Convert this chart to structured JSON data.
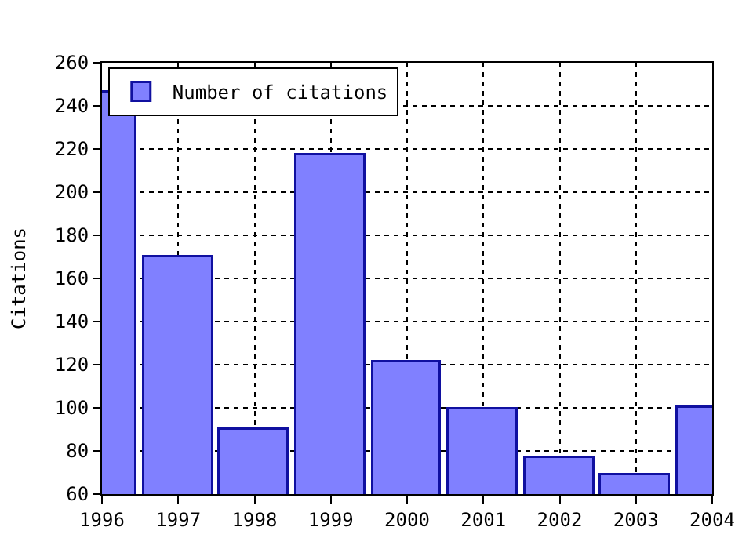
{
  "chart_data": {
    "type": "bar",
    "ylabel": "Citations",
    "x": [
      1996,
      1997,
      1998,
      1999,
      2000,
      2001,
      2002,
      2003,
      2004
    ],
    "series": [
      {
        "name": "Number of citations",
        "color": "#8080ff",
        "values": [
          246,
          170,
          90,
          217,
          121,
          99,
          77,
          69,
          100
        ]
      }
    ],
    "xlim": [
      1996,
      2004
    ],
    "xticks": [
      1996,
      1997,
      1998,
      1999,
      2000,
      2001,
      2002,
      2003,
      2004
    ],
    "ylim": [
      60,
      260
    ],
    "yticks": [
      60,
      80,
      100,
      120,
      140,
      160,
      180,
      200,
      220,
      240,
      260
    ],
    "grid": true,
    "legend": "top left"
  }
}
